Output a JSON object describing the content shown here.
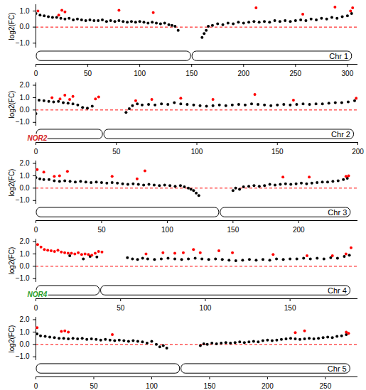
{
  "chart_data": [
    {
      "type": "scatter",
      "ylabel": "log2(FC)",
      "xlim": [
        0,
        310
      ],
      "xticks": [
        0,
        50,
        100,
        150,
        200,
        250,
        300
      ],
      "ylim": [
        -1.3,
        1.4
      ],
      "yticks": [
        -1,
        0,
        1
      ],
      "reference_line": {
        "y": 0,
        "color": "#ff0000",
        "line_style": "dashed"
      },
      "ideogram": {
        "length": 305,
        "centromere": 150,
        "label": "Chr 1"
      },
      "series": [
        {
          "color": "#000000",
          "marker": "circle",
          "x": [
            0,
            4,
            8,
            12,
            16,
            20,
            24,
            28,
            32,
            36,
            40,
            44,
            48,
            52,
            56,
            60,
            64,
            68,
            72,
            76,
            80,
            84,
            88,
            92,
            96,
            100,
            104,
            108,
            112,
            116,
            120,
            124,
            128,
            131,
            134,
            137,
            160,
            162,
            164,
            166,
            170,
            175,
            180,
            185,
            190,
            195,
            200,
            205,
            210,
            215,
            220,
            225,
            230,
            235,
            240,
            245,
            250,
            255,
            260,
            265,
            270,
            275,
            280,
            285,
            290,
            295,
            300,
            304
          ],
          "values": [
            0.85,
            0.75,
            0.7,
            0.65,
            0.6,
            0.6,
            0.55,
            0.5,
            0.55,
            0.45,
            0.5,
            0.45,
            0.4,
            0.45,
            0.4,
            0.4,
            0.45,
            0.35,
            0.4,
            0.35,
            0.4,
            0.35,
            0.3,
            0.35,
            0.3,
            0.35,
            0.3,
            0.25,
            0.3,
            0.25,
            0.2,
            0.25,
            0.15,
            0.1,
            0.05,
            -0.2,
            -0.65,
            -0.4,
            -0.2,
            0.05,
            0.1,
            0.2,
            0.15,
            0.25,
            0.2,
            0.3,
            0.25,
            0.3,
            0.35,
            0.3,
            0.35,
            0.3,
            0.4,
            0.35,
            0.4,
            0.35,
            0.4,
            0.45,
            0.4,
            0.5,
            0.45,
            0.55,
            0.5,
            0.6,
            0.55,
            0.65,
            0.7,
            0.85
          ]
        },
        {
          "color": "#ff0000",
          "marker": "circle",
          "x": [
            2,
            22,
            25,
            28,
            80,
            113,
            212,
            257,
            288,
            303,
            305
          ],
          "values": [
            1.0,
            0.75,
            1.05,
            0.95,
            1.05,
            0.9,
            1.2,
            0.8,
            1.25,
            1.0,
            1.2
          ]
        }
      ]
    },
    {
      "type": "scatter",
      "ylabel": "log2(FC)",
      "xlim": [
        0,
        200
      ],
      "xticks": [
        0,
        50,
        100,
        150,
        200
      ],
      "ylim": [
        -1.3,
        2.2
      ],
      "yticks": [
        -1,
        0,
        1,
        2
      ],
      "reference_line": {
        "y": 0,
        "color": "#ff0000",
        "line_style": "dashed"
      },
      "ideogram": {
        "length": 198,
        "centromere": 42,
        "label": "Chr 2",
        "nor": {
          "label": "NOR2",
          "color": "#d62728"
        }
      },
      "series": [
        {
          "color": "#000000",
          "marker": "circle",
          "x": [
            0,
            2,
            5,
            8,
            11,
            14,
            17,
            20,
            23,
            26,
            29,
            32,
            35,
            56,
            58,
            60,
            63,
            66,
            70,
            74,
            78,
            82,
            86,
            90,
            94,
            98,
            102,
            106,
            110,
            114,
            118,
            122,
            126,
            130,
            134,
            138,
            142,
            146,
            150,
            154,
            158,
            162,
            166,
            170,
            174,
            178,
            182,
            186,
            190,
            194,
            198
          ],
          "values": [
            -0.3,
            0.8,
            0.75,
            0.7,
            0.65,
            0.7,
            0.6,
            0.55,
            0.5,
            0.4,
            0.2,
            0.15,
            0.3,
            -0.2,
            0.1,
            0.35,
            0.5,
            0.4,
            0.45,
            0.4,
            0.5,
            0.45,
            0.6,
            0.5,
            0.45,
            0.4,
            0.35,
            0.3,
            0.35,
            0.4,
            0.35,
            0.4,
            0.45,
            0.4,
            0.5,
            0.45,
            0.4,
            0.35,
            0.4,
            0.45,
            0.4,
            0.45,
            0.5,
            0.45,
            0.5,
            0.5,
            0.55,
            0.6,
            0.6,
            0.65,
            0.75
          ]
        },
        {
          "color": "#ff0000",
          "marker": "circle",
          "x": [
            10,
            15,
            18,
            21,
            23,
            37,
            39,
            62,
            72,
            90,
            110,
            136,
            160,
            199
          ],
          "values": [
            1.0,
            0.9,
            1.2,
            0.85,
            1.1,
            0.9,
            1.05,
            0.75,
            0.85,
            0.95,
            0.85,
            1.25,
            0.8,
            0.95
          ]
        }
      ]
    },
    {
      "type": "scatter",
      "ylabel": "log2(FC)",
      "xlim": [
        0,
        245
      ],
      "xticks": [
        0,
        50,
        100,
        150,
        200
      ],
      "ylim": [
        -1.3,
        2.2
      ],
      "yticks": [
        -1,
        0,
        1,
        2
      ],
      "reference_line": {
        "y": 0,
        "color": "#ff0000",
        "line_style": "dashed"
      },
      "ideogram": {
        "length": 240,
        "centromere": 140,
        "label": "Chr 3"
      },
      "series": [
        {
          "color": "#000000",
          "marker": "circle",
          "x": [
            0,
            3,
            6,
            10,
            14,
            18,
            22,
            26,
            30,
            34,
            38,
            42,
            46,
            50,
            54,
            58,
            62,
            66,
            70,
            74,
            78,
            82,
            86,
            90,
            94,
            98,
            102,
            106,
            110,
            113,
            116,
            118,
            120,
            122,
            124,
            150,
            152,
            155,
            158,
            162,
            166,
            170,
            174,
            178,
            182,
            186,
            190,
            194,
            198,
            202,
            206,
            210,
            214,
            218,
            222,
            226,
            230,
            234,
            237
          ],
          "values": [
            0.85,
            0.75,
            0.7,
            0.7,
            0.6,
            0.55,
            0.6,
            0.55,
            0.5,
            0.55,
            0.5,
            0.45,
            0.5,
            0.45,
            0.4,
            0.45,
            0.4,
            0.35,
            0.3,
            0.35,
            0.3,
            0.25,
            0.3,
            0.25,
            0.2,
            0.25,
            0.2,
            0.15,
            0.2,
            0.1,
            0.0,
            -0.1,
            -0.2,
            -0.4,
            -0.6,
            -0.2,
            0.0,
            -0.1,
            0.1,
            0.15,
            0.2,
            0.15,
            0.2,
            0.3,
            0.25,
            0.3,
            0.35,
            0.3,
            0.35,
            0.4,
            0.35,
            0.4,
            0.45,
            0.5,
            0.5,
            0.55,
            0.6,
            0.7,
            0.8
          ]
        },
        {
          "color": "#ff0000",
          "marker": "circle",
          "x": [
            1,
            6,
            14,
            18,
            24,
            58,
            77,
            83,
            188,
            208,
            236,
            238
          ],
          "values": [
            1.5,
            1.3,
            0.95,
            1.0,
            1.35,
            0.95,
            0.75,
            1.4,
            0.9,
            0.9,
            0.95,
            1.0
          ]
        }
      ]
    },
    {
      "type": "scatter",
      "ylabel": "log2(FC)",
      "xlim": [
        0,
        190
      ],
      "xticks": [
        0,
        50,
        100,
        150
      ],
      "ylim": [
        -1.3,
        2.2
      ],
      "yticks": [
        -1,
        0,
        1,
        2
      ],
      "reference_line": {
        "y": 0,
        "color": "#ff0000",
        "line_style": "dashed"
      },
      "ideogram": {
        "length": 186,
        "centromere": 38,
        "label": "Chr 4",
        "nor": {
          "label": "NOR4",
          "color": "#2ca02c"
        }
      },
      "series": [
        {
          "color": "#000000",
          "marker": "circle",
          "x": [
            20,
            28,
            32,
            36,
            54,
            57,
            60,
            63,
            66,
            70,
            74,
            78,
            82,
            86,
            90,
            94,
            98,
            102,
            106,
            110,
            114,
            118,
            122,
            126,
            130,
            134,
            138,
            142,
            146,
            150,
            154,
            158,
            162,
            166,
            170,
            174,
            178,
            182,
            185
          ],
          "values": [
            0.85,
            0.6,
            0.8,
            0.75,
            0.7,
            0.6,
            0.55,
            0.65,
            0.6,
            0.55,
            0.6,
            0.65,
            0.6,
            0.55,
            0.6,
            0.65,
            0.6,
            0.55,
            0.6,
            0.55,
            0.5,
            0.45,
            0.5,
            0.55,
            0.5,
            0.55,
            0.5,
            0.6,
            0.55,
            0.6,
            0.6,
            0.65,
            0.6,
            0.65,
            0.6,
            0.7,
            0.65,
            0.8,
            0.9
          ]
        },
        {
          "color": "#ff0000",
          "marker": "circle",
          "x": [
            1,
            3,
            5,
            7,
            9,
            11,
            13,
            15,
            17,
            19,
            21,
            23,
            25,
            27,
            29,
            31,
            33,
            35,
            37,
            39,
            65,
            75,
            82,
            87,
            93,
            97,
            108,
            116,
            140,
            160,
            175,
            183,
            186
          ],
          "values": [
            1.75,
            1.55,
            1.35,
            1.3,
            1.25,
            1.2,
            1.3,
            1.15,
            1.1,
            1.05,
            1.05,
            1.0,
            1.1,
            0.95,
            1.0,
            0.95,
            0.9,
            1.05,
            1.2,
            1.15,
            1.0,
            1.1,
            1.05,
            1.1,
            1.35,
            1.1,
            1.25,
            1.1,
            0.95,
            0.85,
            0.85,
            1.0,
            1.5
          ]
        }
      ]
    },
    {
      "type": "scatter",
      "ylabel": "log2(FC)",
      "xlim": [
        0,
        278
      ],
      "xticks": [
        0,
        50,
        100,
        150,
        200,
        250
      ],
      "ylim": [
        -1.3,
        2.2
      ],
      "yticks": [
        -1,
        0,
        1,
        2
      ],
      "reference_line": {
        "y": 0,
        "color": "#ff0000",
        "line_style": "dashed"
      },
      "ideogram": {
        "length": 272,
        "centromere": 125,
        "label": "Chr 5"
      },
      "series": [
        {
          "color": "#000000",
          "marker": "circle",
          "x": [
            1,
            4,
            8,
            12,
            16,
            20,
            24,
            28,
            32,
            36,
            40,
            44,
            48,
            52,
            56,
            60,
            64,
            68,
            72,
            76,
            80,
            84,
            88,
            92,
            96,
            100,
            104,
            107,
            110,
            113,
            142,
            145,
            148,
            152,
            156,
            160,
            164,
            168,
            172,
            176,
            180,
            184,
            188,
            192,
            196,
            200,
            204,
            208,
            212,
            216,
            220,
            224,
            228,
            232,
            236,
            240,
            244,
            248,
            252,
            256,
            260,
            264,
            268
          ],
          "values": [
            0.85,
            0.7,
            0.65,
            0.6,
            0.55,
            0.5,
            0.5,
            0.45,
            0.5,
            0.45,
            0.5,
            0.4,
            0.45,
            0.4,
            0.35,
            0.4,
            0.35,
            0.3,
            0.35,
            0.3,
            0.25,
            0.3,
            0.25,
            0.2,
            0.1,
            0.25,
            0.0,
            -0.2,
            -0.1,
            -0.3,
            -0.1,
            0.05,
            0.0,
            0.1,
            0.05,
            0.1,
            0.15,
            0.1,
            0.15,
            0.2,
            0.15,
            0.2,
            0.25,
            0.2,
            0.3,
            0.35,
            0.3,
            0.35,
            0.4,
            0.45,
            0.5,
            0.45,
            0.4,
            0.45,
            0.5,
            0.45,
            0.5,
            0.55,
            0.6,
            0.55,
            0.65,
            0.7,
            0.8
          ]
        },
        {
          "color": "#ff0000",
          "marker": "circle",
          "x": [
            1,
            22,
            25,
            28,
            66,
            224,
            232,
            268,
            270
          ],
          "values": [
            1.35,
            1.05,
            1.1,
            1.0,
            0.8,
            0.95,
            1.1,
            1.0,
            0.9
          ]
        }
      ]
    }
  ]
}
